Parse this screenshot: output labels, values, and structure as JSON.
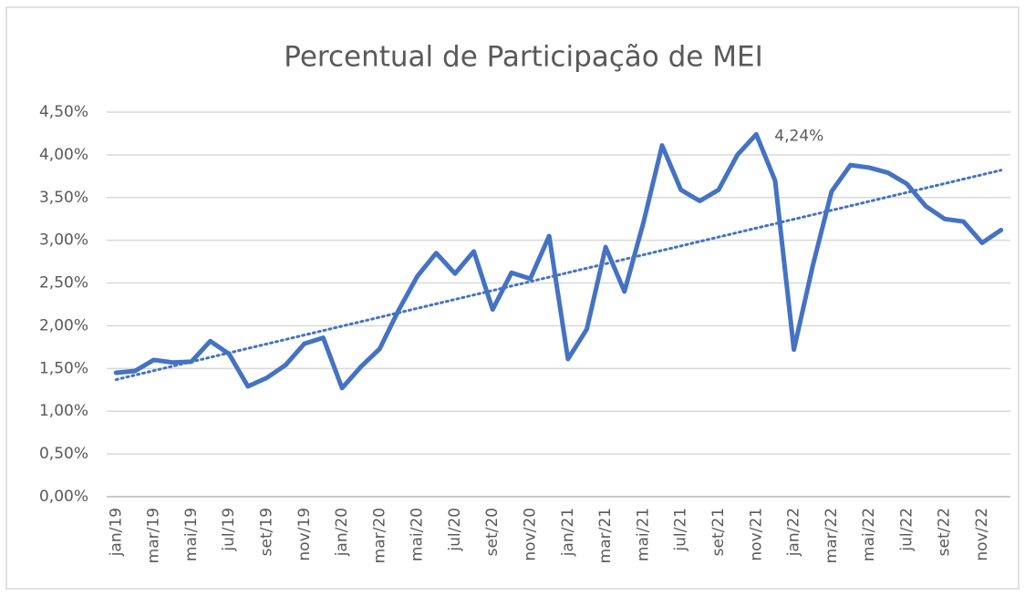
{
  "chart_data": {
    "type": "line",
    "title": "Percentual de Participação de MEI",
    "categories": [
      "jan/19",
      null,
      "mar/19",
      null,
      "mai/19",
      null,
      "jul/19",
      null,
      "set/19",
      null,
      "nov/19",
      null,
      "jan/20",
      null,
      "mar/20",
      null,
      "mai/20",
      null,
      "jul/20",
      null,
      "set/20",
      null,
      "nov/20",
      null,
      "jan/21",
      null,
      "mar/21",
      null,
      "mai/21",
      null,
      "jul/21",
      null,
      "set/21",
      null,
      "nov/21",
      null,
      "jan/22",
      null,
      "mar/22",
      null,
      "mai/22",
      null,
      "jul/22",
      null,
      "set/22",
      null,
      "nov/22",
      null
    ],
    "values": [
      1.45,
      1.47,
      1.6,
      1.57,
      1.58,
      1.82,
      1.67,
      1.29,
      1.39,
      1.54,
      1.79,
      1.86,
      1.27,
      1.52,
      1.73,
      2.18,
      2.58,
      2.85,
      2.61,
      2.87,
      2.19,
      2.62,
      2.55,
      3.05,
      1.61,
      1.96,
      2.92,
      2.4,
      3.2,
      4.11,
      3.59,
      3.46,
      3.59,
      4.0,
      4.24,
      3.7,
      1.72,
      2.7,
      3.57,
      3.88,
      3.85,
      3.79,
      3.66,
      3.4,
      3.25,
      3.22,
      2.97,
      3.12
    ],
    "value_labels": [
      null,
      null,
      null,
      null,
      null,
      null,
      null,
      null,
      null,
      null,
      null,
      null,
      null,
      null,
      null,
      null,
      null,
      null,
      null,
      null,
      null,
      null,
      null,
      null,
      null,
      null,
      null,
      null,
      null,
      null,
      null,
      null,
      null,
      null,
      "4,24%",
      null,
      null,
      null,
      null,
      null,
      null,
      null,
      null,
      null,
      null,
      null,
      null,
      null
    ],
    "color": "#4472c4",
    "trendline": {
      "start": 1.37,
      "end": 3.82,
      "style": "dotted"
    },
    "ylim": [
      0,
      4.5
    ],
    "yticks": [
      {
        "value": 0,
        "label": "0,00%"
      },
      {
        "value": 0.5,
        "label": "0,50%"
      },
      {
        "value": 1,
        "label": "1,00%"
      },
      {
        "value": 1.5,
        "label": "1,50%"
      },
      {
        "value": 2,
        "label": "2,00%"
      },
      {
        "value": 2.5,
        "label": "2,50%"
      },
      {
        "value": 3,
        "label": "3,00%"
      },
      {
        "value": 3.5,
        "label": "3,50%"
      },
      {
        "value": 4,
        "label": "4,00%"
      },
      {
        "value": 4.5,
        "label": "4,50%"
      }
    ],
    "grid": true
  }
}
